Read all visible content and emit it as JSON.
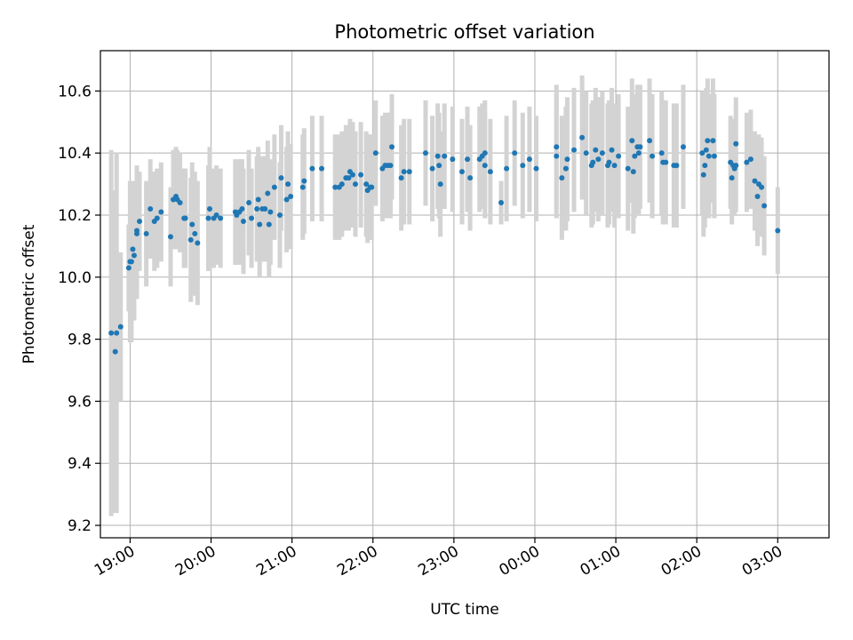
{
  "chart_data": {
    "type": "scatter",
    "title": "Photometric offset variation",
    "xlabel": "UTC time",
    "ylabel": "Photometric offset",
    "x_unit": "UTC time (HH:MM; after 24:00 = next day)",
    "xlim": [
      "18:38",
      "03:38"
    ],
    "ylim": [
      9.16,
      10.73
    ],
    "x_ticks": [
      "19:00",
      "20:00",
      "21:00",
      "22:00",
      "23:00",
      "00:00",
      "01:00",
      "02:00",
      "03:00"
    ],
    "y_ticks": [
      "9.2",
      "9.4",
      "9.6",
      "9.8",
      "10.0",
      "10.2",
      "10.4",
      "10.6"
    ],
    "grid": true,
    "colors": {
      "points": "#1f77b4",
      "error_bars": "#d3d3d3",
      "grid": "#b0b0b0"
    },
    "series": [
      {
        "columns": [
          "time_utc",
          "offset",
          "error"
        ],
        "points": [
          [
            "18:46",
            9.82,
            0.59
          ],
          [
            "18:49",
            9.76,
            0.52
          ],
          [
            "18:50",
            9.82,
            0.58
          ],
          [
            "18:53",
            9.84,
            0.24
          ],
          [
            "18:59",
            10.03,
            0.14
          ],
          [
            "19:00",
            10.05,
            0.26
          ],
          [
            "19:01",
            10.05,
            0.26
          ],
          [
            "19:02",
            10.09,
            0.22
          ],
          [
            "19:03",
            10.07,
            0.21
          ],
          [
            "19:05",
            10.15,
            0.21
          ],
          [
            "19:05",
            10.14,
            0.21
          ],
          [
            "19:07",
            10.18,
            0.16
          ],
          [
            "19:12",
            10.14,
            0.17
          ],
          [
            "19:15",
            10.22,
            0.16
          ],
          [
            "19:18",
            10.18,
            0.16
          ],
          [
            "19:20",
            10.19,
            0.16
          ],
          [
            "19:23",
            10.21,
            0.16
          ],
          [
            "19:30",
            10.13,
            0.16
          ],
          [
            "19:32",
            10.25,
            0.16
          ],
          [
            "19:34",
            10.26,
            0.16
          ],
          [
            "19:35",
            10.25,
            0.16
          ],
          [
            "19:37",
            10.24,
            0.16
          ],
          [
            "19:40",
            10.19,
            0.16
          ],
          [
            "19:41",
            10.19,
            0.16
          ],
          [
            "19:45",
            10.12,
            0.2
          ],
          [
            "19:46",
            10.17,
            0.2
          ],
          [
            "19:48",
            10.14,
            0.2
          ],
          [
            "19:50",
            10.11,
            0.2
          ],
          [
            "19:58",
            10.19,
            0.17
          ],
          [
            "19:59",
            10.22,
            0.2
          ],
          [
            "20:02",
            10.19,
            0.16
          ],
          [
            "20:04",
            10.2,
            0.16
          ],
          [
            "20:07",
            10.19,
            0.16
          ],
          [
            "20:18",
            10.21,
            0.17
          ],
          [
            "20:19",
            10.2,
            0.16
          ],
          [
            "20:21",
            10.21,
            0.17
          ],
          [
            "20:23",
            10.22,
            0.16
          ],
          [
            "20:24",
            10.18,
            0.17
          ],
          [
            "20:28",
            10.24,
            0.17
          ],
          [
            "20:30",
            10.19,
            0.16
          ],
          [
            "20:34",
            10.22,
            0.17
          ],
          [
            "20:35",
            10.25,
            0.17
          ],
          [
            "20:36",
            10.17,
            0.17
          ],
          [
            "20:38",
            10.22,
            0.17
          ],
          [
            "20:40",
            10.22,
            0.17
          ],
          [
            "20:42",
            10.27,
            0.17
          ],
          [
            "20:43",
            10.17,
            0.17
          ],
          [
            "20:44",
            10.21,
            0.17
          ],
          [
            "20:47",
            10.29,
            0.17
          ],
          [
            "20:51",
            10.2,
            0.17
          ],
          [
            "20:52",
            10.32,
            0.17
          ],
          [
            "20:56",
            10.25,
            0.17
          ],
          [
            "20:57",
            10.3,
            0.17
          ],
          [
            "20:59",
            10.26,
            0.17
          ],
          [
            "21:08",
            10.29,
            0.17
          ],
          [
            "21:09",
            10.31,
            0.17
          ],
          [
            "21:15",
            10.35,
            0.17
          ],
          [
            "21:22",
            10.35,
            0.17
          ],
          [
            "21:32",
            10.29,
            0.17
          ],
          [
            "21:35",
            10.29,
            0.17
          ],
          [
            "21:37",
            10.3,
            0.17
          ],
          [
            "21:40",
            10.32,
            0.17
          ],
          [
            "21:42",
            10.32,
            0.17
          ],
          [
            "21:43",
            10.34,
            0.17
          ],
          [
            "21:45",
            10.33,
            0.17
          ],
          [
            "21:47",
            10.3,
            0.17
          ],
          [
            "21:51",
            10.33,
            0.17
          ],
          [
            "21:55",
            10.3,
            0.17
          ],
          [
            "21:56",
            10.28,
            0.17
          ],
          [
            "21:58",
            10.29,
            0.17
          ],
          [
            "21:59",
            10.29,
            0.17
          ],
          [
            "22:02",
            10.4,
            0.17
          ],
          [
            "22:07",
            10.35,
            0.17
          ],
          [
            "22:09",
            10.36,
            0.17
          ],
          [
            "22:11",
            10.36,
            0.17
          ],
          [
            "22:13",
            10.36,
            0.17
          ],
          [
            "22:14",
            10.42,
            0.17
          ],
          [
            "22:21",
            10.32,
            0.17
          ],
          [
            "22:23",
            10.34,
            0.17
          ],
          [
            "22:27",
            10.34,
            0.17
          ],
          [
            "22:39",
            10.4,
            0.17
          ],
          [
            "22:44",
            10.35,
            0.17
          ],
          [
            "22:48",
            10.39,
            0.17
          ],
          [
            "22:49",
            10.36,
            0.17
          ],
          [
            "22:50",
            10.3,
            0.17
          ],
          [
            "22:53",
            10.39,
            0.17
          ],
          [
            "22:59",
            10.38,
            0.17
          ],
          [
            "23:06",
            10.34,
            0.17
          ],
          [
            "23:10",
            10.38,
            0.17
          ],
          [
            "23:12",
            10.32,
            0.17
          ],
          [
            "23:19",
            10.38,
            0.17
          ],
          [
            "23:21",
            10.39,
            0.17
          ],
          [
            "23:23",
            10.4,
            0.17
          ],
          [
            "23:23",
            10.36,
            0.17
          ],
          [
            "23:27",
            10.34,
            0.17
          ],
          [
            "23:35",
            10.24,
            0.07
          ],
          [
            "23:39",
            10.35,
            0.17
          ],
          [
            "23:45",
            10.4,
            0.17
          ],
          [
            "23:51",
            10.36,
            0.17
          ],
          [
            "23:56",
            10.38,
            0.17
          ],
          [
            "00:01",
            10.35,
            0.17
          ],
          [
            "00:16",
            10.42,
            0.2
          ],
          [
            "00:16",
            10.39,
            0.2
          ],
          [
            "00:20",
            10.32,
            0.2
          ],
          [
            "00:23",
            10.35,
            0.2
          ],
          [
            "00:24",
            10.38,
            0.2
          ],
          [
            "00:29",
            10.41,
            0.2
          ],
          [
            "00:35",
            10.45,
            0.2
          ],
          [
            "00:38",
            10.4,
            0.2
          ],
          [
            "00:42",
            10.36,
            0.2
          ],
          [
            "00:43",
            10.37,
            0.2
          ],
          [
            "00:45",
            10.41,
            0.2
          ],
          [
            "00:47",
            10.38,
            0.2
          ],
          [
            "00:50",
            10.4,
            0.2
          ],
          [
            "00:54",
            10.36,
            0.2
          ],
          [
            "00:55",
            10.37,
            0.2
          ],
          [
            "00:57",
            10.41,
            0.2
          ],
          [
            "00:59",
            10.36,
            0.2
          ],
          [
            "01:02",
            10.39,
            0.2
          ],
          [
            "01:09",
            10.35,
            0.2
          ],
          [
            "01:12",
            10.44,
            0.2
          ],
          [
            "01:13",
            10.34,
            0.2
          ],
          [
            "01:14",
            10.39,
            0.2
          ],
          [
            "01:16",
            10.42,
            0.2
          ],
          [
            "01:17",
            10.4,
            0.2
          ],
          [
            "01:18",
            10.42,
            0.2
          ],
          [
            "01:25",
            10.44,
            0.2
          ],
          [
            "01:27",
            10.39,
            0.2
          ],
          [
            "01:34",
            10.4,
            0.2
          ],
          [
            "01:35",
            10.37,
            0.2
          ],
          [
            "01:37",
            10.37,
            0.2
          ],
          [
            "01:43",
            10.36,
            0.2
          ],
          [
            "01:45",
            10.36,
            0.2
          ],
          [
            "01:50",
            10.42,
            0.2
          ],
          [
            "02:04",
            10.4,
            0.2
          ],
          [
            "02:05",
            10.33,
            0.2
          ],
          [
            "02:06",
            10.36,
            0.2
          ],
          [
            "02:07",
            10.41,
            0.2
          ],
          [
            "02:08",
            10.44,
            0.2
          ],
          [
            "02:09",
            10.39,
            0.2
          ],
          [
            "02:12",
            10.44,
            0.2
          ],
          [
            "02:13",
            10.39,
            0.2
          ],
          [
            "02:25",
            10.37,
            0.15
          ],
          [
            "02:26",
            10.32,
            0.15
          ],
          [
            "02:27",
            10.36,
            0.15
          ],
          [
            "02:28",
            10.35,
            0.15
          ],
          [
            "02:29",
            10.43,
            0.15
          ],
          [
            "02:29",
            10.36,
            0.15
          ],
          [
            "02:37",
            10.37,
            0.16
          ],
          [
            "02:40",
            10.38,
            0.16
          ],
          [
            "02:43",
            10.31,
            0.16
          ],
          [
            "02:45",
            10.26,
            0.16
          ],
          [
            "02:46",
            10.3,
            0.16
          ],
          [
            "02:48",
            10.29,
            0.16
          ],
          [
            "02:50",
            10.23,
            0.16
          ],
          [
            "03:00",
            10.15,
            0.14
          ]
        ]
      }
    ]
  }
}
